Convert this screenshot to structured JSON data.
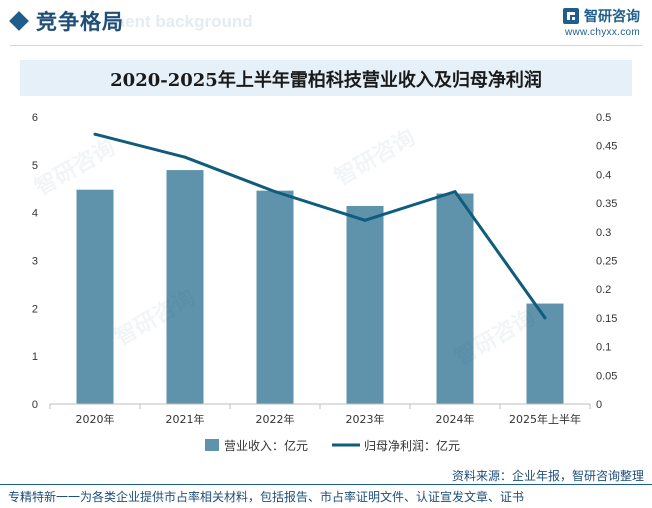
{
  "header": {
    "section_title": "竞争格局",
    "bg_watermark": "ment background",
    "brand_name": "智研咨询",
    "brand_url": "www.chyxx.com"
  },
  "chart_data": {
    "type": "bar+line",
    "title": "2020-2025年上半年雷柏科技营业收入及归母净利润",
    "categories": [
      "2020年",
      "2021年",
      "2022年",
      "2023年",
      "2024年",
      "2025年上半年"
    ],
    "series": [
      {
        "name": "营业收入：亿元",
        "type": "bar",
        "axis": "left",
        "values": [
          4.48,
          4.89,
          4.46,
          4.14,
          4.4,
          2.1
        ]
      },
      {
        "name": "归母净利润：亿元",
        "type": "line",
        "axis": "right",
        "values": [
          0.47,
          0.43,
          0.37,
          0.32,
          0.37,
          0.15
        ]
      }
    ],
    "left_axis": {
      "ylim": [
        0,
        6
      ],
      "ticks": [
        "0",
        "1",
        "2",
        "3",
        "4",
        "5",
        "6"
      ]
    },
    "right_axis": {
      "ylim": [
        0,
        0.5
      ],
      "ticks": [
        "0",
        "0.05",
        "0.1",
        "0.15",
        "0.2",
        "0.25",
        "0.3",
        "0.35",
        "0.4",
        "0.45",
        "0.5"
      ]
    },
    "legend_position": "bottom",
    "colors": {
      "bar": "#5e93ab",
      "line": "#0f5c7c"
    }
  },
  "footer": {
    "source": "资料来源：企业年报，智研咨询整理",
    "note": "专精特新一一为各类企业提供市占率相关材料，包括报告、市占率证明文件、认证宣发文章、证书"
  }
}
